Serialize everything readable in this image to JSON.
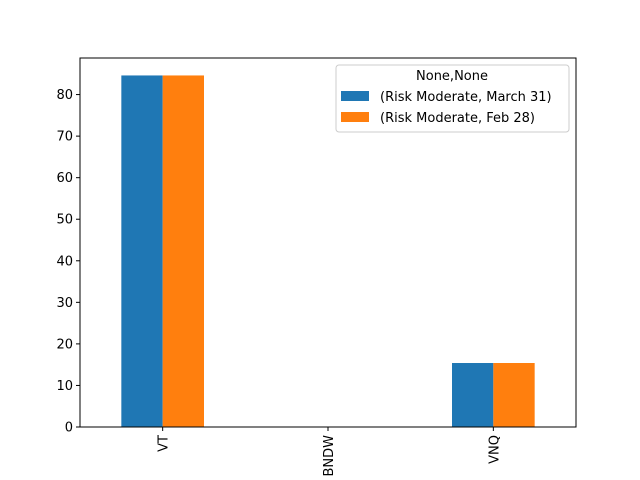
{
  "chart_data": {
    "type": "bar",
    "categories": [
      "VT",
      "BNDW",
      "VNQ"
    ],
    "series": [
      {
        "name": "(Risk Moderate, March 31)",
        "values": [
          84.6,
          0,
          15.4
        ],
        "color": "#1f77b4"
      },
      {
        "name": "(Risk Moderate, Feb 28)",
        "values": [
          84.6,
          0,
          15.4
        ],
        "color": "#ff7f0e"
      }
    ],
    "legend_title": "None,None",
    "legend_position": "top-right",
    "ylim": [
      0,
      88.8
    ],
    "yticks": [
      0,
      10,
      20,
      30,
      40,
      50,
      60,
      70,
      80
    ],
    "grid": false
  }
}
